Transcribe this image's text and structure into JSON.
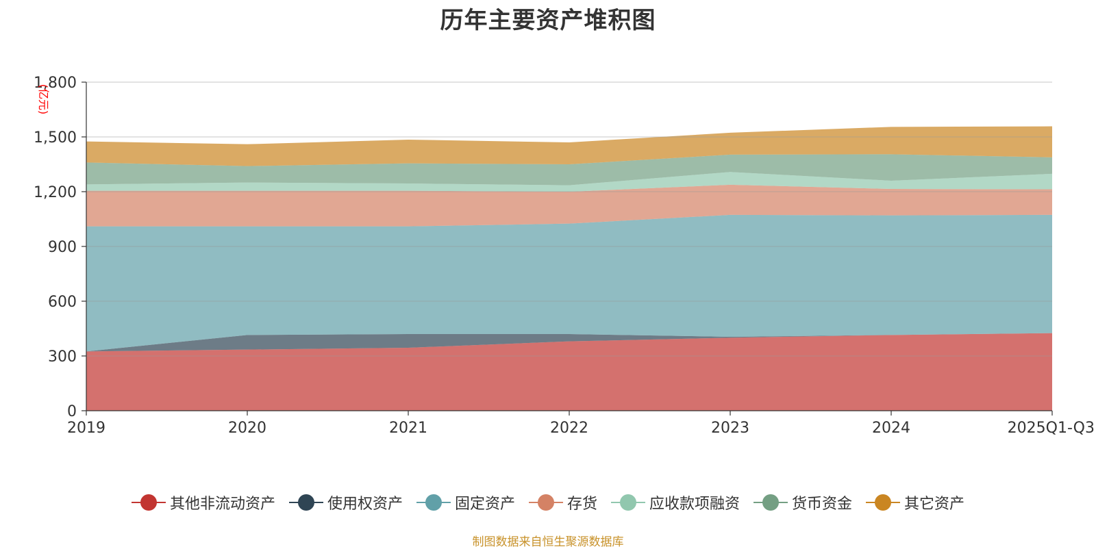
{
  "chart_data": {
    "type": "area",
    "stacked": true,
    "title": "历年主要资产堆积图",
    "ylabel": "(亿元)",
    "xlabel": "",
    "ylim": [
      0,
      1800
    ],
    "yticks": [
      0,
      300,
      600,
      900,
      1200,
      1500,
      1800
    ],
    "ytick_labels": [
      "0",
      "300",
      "600",
      "900",
      "1,200",
      "1,500",
      "1,800"
    ],
    "categories": [
      "2019",
      "2020",
      "2021",
      "2022",
      "2023",
      "2024",
      "2025Q1-Q3"
    ],
    "grid": true,
    "legend_position": "bottom",
    "series": [
      {
        "name": "其他非流动资产",
        "color": "#c23531",
        "values": [
          325,
          335,
          345,
          380,
          400,
          415,
          425
        ]
      },
      {
        "name": "使用权资产",
        "color": "#2f4554",
        "values": [
          0,
          80,
          75,
          40,
          5,
          0,
          0
        ]
      },
      {
        "name": "固定资产",
        "color": "#61a0a8",
        "values": [
          685,
          595,
          590,
          605,
          668,
          655,
          648
        ]
      },
      {
        "name": "存货",
        "color": "#d48265",
        "values": [
          195,
          195,
          195,
          175,
          165,
          145,
          140
        ]
      },
      {
        "name": "应收款项融资",
        "color": "#91c7ae",
        "values": [
          35,
          45,
          40,
          35,
          70,
          45,
          85
        ]
      },
      {
        "name": "货币资金",
        "color": "#749f83",
        "values": [
          120,
          90,
          110,
          115,
          95,
          145,
          90
        ]
      },
      {
        "name": "其它资产",
        "color": "#ca8622",
        "values": [
          115,
          120,
          130,
          120,
          120,
          150,
          170
        ]
      }
    ]
  },
  "source_note": "制图数据来自恒生聚源数据库"
}
